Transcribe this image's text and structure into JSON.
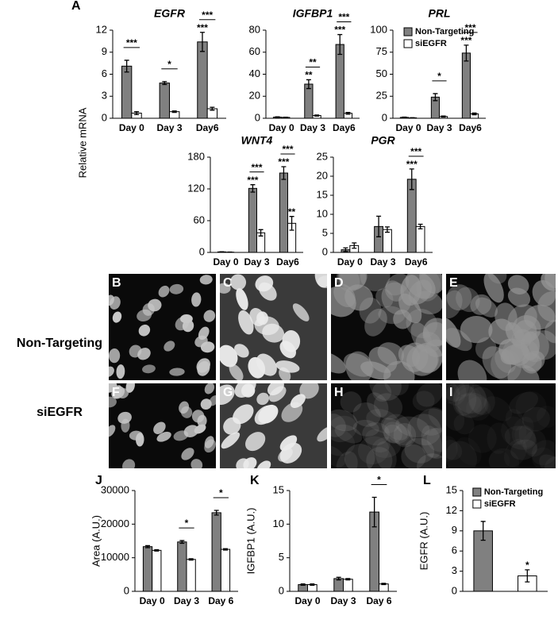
{
  "chart_data": [
    {
      "type": "bar",
      "panel": "A",
      "title": "EGFR",
      "categories": [
        "Day 0",
        "Day 3",
        "Day6"
      ],
      "series": [
        {
          "name": "Non-Targeting",
          "color": "#808080",
          "values": [
            7.1,
            4.8,
            10.4
          ],
          "errors": [
            0.8,
            0.2,
            1.3
          ],
          "stars": [
            null,
            null,
            "***"
          ]
        },
        {
          "name": "siEGFR",
          "color": "#ffffff",
          "values": [
            0.7,
            0.9,
            1.3
          ],
          "errors": [
            0.2,
            0.1,
            0.2
          ],
          "stars": [
            null,
            null,
            null
          ]
        }
      ],
      "brackets": [
        "***",
        "*",
        "***"
      ],
      "ylim": [
        0,
        12
      ],
      "yticks": [
        0,
        3,
        6,
        9,
        12
      ]
    },
    {
      "type": "bar",
      "title": "IGFBP1",
      "categories": [
        "Day 0",
        "Day 3",
        "Day6"
      ],
      "series": [
        {
          "name": "Non-Targeting",
          "color": "#808080",
          "values": [
            1,
            31,
            67
          ],
          "errors": [
            0.3,
            4,
            9
          ],
          "stars": [
            null,
            "**",
            "***"
          ]
        },
        {
          "name": "siEGFR",
          "color": "#ffffff",
          "values": [
            0.8,
            2.5,
            4.5
          ],
          "errors": [
            0.2,
            0.5,
            0.8
          ],
          "stars": [
            null,
            null,
            null
          ]
        }
      ],
      "brackets": [
        null,
        "**",
        "***"
      ],
      "ylim": [
        0,
        80
      ],
      "yticks": [
        0,
        20,
        40,
        60,
        80
      ]
    },
    {
      "type": "bar",
      "title": "PRL",
      "legend": "upper right",
      "categories": [
        "Day 0",
        "Day 3",
        "Day6"
      ],
      "series": [
        {
          "name": "Non-Targeting",
          "color": "#808080",
          "values": [
            1,
            24,
            74
          ],
          "errors": [
            0.3,
            4,
            9
          ],
          "stars": [
            null,
            null,
            "***"
          ]
        },
        {
          "name": "siEGFR",
          "color": "#ffffff",
          "values": [
            0.5,
            2,
            5
          ],
          "errors": [
            0.2,
            0.6,
            1
          ],
          "stars": [
            null,
            null,
            null
          ]
        }
      ],
      "brackets": [
        null,
        "*",
        "***"
      ],
      "ylim": [
        0,
        100
      ],
      "yticks": [
        0,
        25,
        50,
        75,
        100
      ]
    },
    {
      "type": "bar",
      "title": "WNT4",
      "categories": [
        "Day 0",
        "Day 3",
        "Day6"
      ],
      "series": [
        {
          "name": "Non-Targeting",
          "color": "#808080",
          "values": [
            1,
            121,
            150
          ],
          "errors": [
            0.3,
            7,
            12
          ],
          "stars": [
            null,
            "***",
            "***"
          ]
        },
        {
          "name": "siEGFR",
          "color": "#ffffff",
          "values": [
            0.5,
            37,
            55
          ],
          "errors": [
            0.2,
            6,
            13
          ],
          "stars": [
            null,
            null,
            "**"
          ]
        }
      ],
      "brackets": [
        null,
        "***",
        "***"
      ],
      "ylim": [
        0,
        180
      ],
      "yticks": [
        0,
        60,
        120,
        180
      ]
    },
    {
      "type": "bar",
      "title": "PGR",
      "categories": [
        "Day 0",
        "Day 3",
        "Day6"
      ],
      "series": [
        {
          "name": "Non-Targeting",
          "color": "#808080",
          "values": [
            0.7,
            6.8,
            19.2
          ],
          "errors": [
            0.5,
            2.7,
            2.7
          ],
          "stars": [
            null,
            null,
            "***"
          ]
        },
        {
          "name": "siEGFR",
          "color": "#ffffff",
          "values": [
            1.8,
            6,
            6.8
          ],
          "errors": [
            0.7,
            0.7,
            0.6
          ],
          "stars": [
            null,
            null,
            null
          ]
        }
      ],
      "brackets": [
        null,
        null,
        "***"
      ],
      "ylim": [
        0,
        25
      ],
      "yticks": [
        0,
        5,
        10,
        15,
        20,
        25
      ]
    },
    {
      "type": "bar",
      "panel": "J",
      "ylabel": "Area (A.U.)",
      "categories": [
        "Day 0",
        "Day 3",
        "Day 6"
      ],
      "series": [
        {
          "name": "Non-Targeting",
          "color": "#808080",
          "values": [
            13300,
            14700,
            23400
          ],
          "errors": [
            300,
            400,
            700
          ],
          "stars": [
            null,
            null,
            null
          ]
        },
        {
          "name": "siEGFR",
          "color": "#ffffff",
          "values": [
            12200,
            9500,
            12500
          ],
          "errors": [
            200,
            200,
            200
          ],
          "stars": [
            null,
            null,
            null
          ]
        }
      ],
      "brackets": [
        null,
        "*",
        "*"
      ],
      "ylim": [
        0,
        30000
      ],
      "yticks": [
        0,
        10000,
        20000,
        30000
      ]
    },
    {
      "type": "bar",
      "panel": "K",
      "ylabel": "IGFBP1 (A.U.)",
      "categories": [
        "Day 0",
        "Day 3",
        "Day 6"
      ],
      "series": [
        {
          "name": "Non-Targeting",
          "color": "#808080",
          "values": [
            1,
            1.9,
            11.8
          ],
          "errors": [
            0.1,
            0.2,
            2.2
          ],
          "stars": [
            null,
            null,
            null
          ]
        },
        {
          "name": "siEGFR",
          "color": "#ffffff",
          "values": [
            1,
            1.8,
            1.1
          ],
          "errors": [
            0.1,
            0.1,
            0.1
          ],
          "stars": [
            null,
            null,
            null
          ]
        }
      ],
      "brackets": [
        null,
        null,
        "*"
      ],
      "ylim": [
        0,
        15
      ],
      "yticks": [
        0,
        5,
        10,
        15
      ]
    },
    {
      "type": "bar",
      "panel": "L",
      "ylabel": "EGFR (A.U.)",
      "legend": "upper right",
      "categories": [
        null
      ],
      "series": [
        {
          "name": "Non-Targeting",
          "color": "#808080",
          "values": [
            9
          ],
          "errors": [
            1.4
          ],
          "stars": [
            null
          ]
        },
        {
          "name": "siEGFR",
          "color": "#ffffff",
          "values": [
            2.3
          ],
          "errors": [
            0.9
          ],
          "stars": [
            "*"
          ]
        }
      ],
      "brackets": [
        null
      ],
      "ylim": [
        0,
        15
      ],
      "yticks": [
        0,
        3,
        6,
        9,
        12,
        15
      ]
    }
  ],
  "panel_a": {
    "ylabel": "Relative mRNA"
  },
  "images": {
    "labels": [
      "B",
      "C",
      "D",
      "E",
      "F",
      "G",
      "H",
      "I"
    ],
    "rows": [
      "Non-Targeting",
      "siEGFR"
    ]
  }
}
